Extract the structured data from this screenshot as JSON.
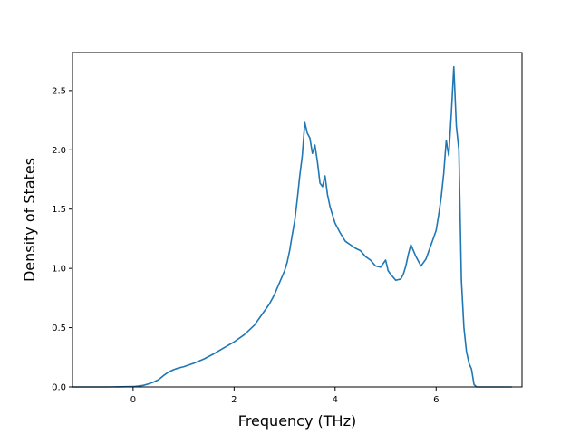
{
  "chart_data": {
    "type": "line",
    "title": "",
    "xlabel": "Frequency (THz)",
    "ylabel": "Density of States",
    "xlim": [
      -1.2,
      7.7
    ],
    "ylim": [
      0.0,
      2.82
    ],
    "xticks": [
      0,
      2,
      4,
      6
    ],
    "xtick_labels": [
      "0",
      "2",
      "4",
      "6"
    ],
    "yticks": [
      0.0,
      0.5,
      1.0,
      1.5,
      2.0,
      2.5
    ],
    "ytick_labels": [
      "0.0",
      "0.5",
      "1.0",
      "1.5",
      "2.0",
      "2.5"
    ],
    "grid": false,
    "colors": {
      "line": "#1f77b4",
      "axes": "#000000",
      "background": "#ffffff"
    },
    "series": [
      {
        "x": [
          -1.2,
          -1.0,
          -0.5,
          0.0,
          0.1,
          0.2,
          0.3,
          0.4,
          0.5,
          0.6,
          0.7,
          0.8,
          0.9,
          1.0,
          1.2,
          1.4,
          1.6,
          1.8,
          2.0,
          2.2,
          2.4,
          2.5,
          2.6,
          2.7,
          2.8,
          2.9,
          3.0,
          3.05,
          3.1,
          3.15,
          3.2,
          3.25,
          3.3,
          3.35,
          3.4,
          3.45,
          3.5,
          3.55,
          3.6,
          3.65,
          3.7,
          3.75,
          3.8,
          3.85,
          3.9,
          4.0,
          4.1,
          4.2,
          4.3,
          4.4,
          4.5,
          4.6,
          4.7,
          4.8,
          4.9,
          5.0,
          5.05,
          5.1,
          5.2,
          5.3,
          5.35,
          5.4,
          5.45,
          5.5,
          5.55,
          5.6,
          5.7,
          5.8,
          5.9,
          6.0,
          6.05,
          6.1,
          6.15,
          6.2,
          6.25,
          6.3,
          6.35,
          6.4,
          6.45,
          6.5,
          6.55,
          6.6,
          6.65,
          6.7,
          6.75,
          6.8,
          6.9,
          7.0,
          7.5
        ],
        "y": [
          0.0,
          0.0,
          0.0,
          0.003,
          0.007,
          0.013,
          0.025,
          0.04,
          0.06,
          0.095,
          0.125,
          0.145,
          0.16,
          0.17,
          0.2,
          0.235,
          0.28,
          0.33,
          0.38,
          0.44,
          0.52,
          0.58,
          0.64,
          0.7,
          0.78,
          0.88,
          0.98,
          1.05,
          1.15,
          1.28,
          1.4,
          1.58,
          1.78,
          1.95,
          2.23,
          2.14,
          2.1,
          1.97,
          2.04,
          1.9,
          1.72,
          1.69,
          1.78,
          1.62,
          1.52,
          1.38,
          1.3,
          1.23,
          1.2,
          1.17,
          1.15,
          1.1,
          1.07,
          1.02,
          1.01,
          1.07,
          0.98,
          0.95,
          0.9,
          0.91,
          0.95,
          1.02,
          1.12,
          1.2,
          1.15,
          1.1,
          1.02,
          1.08,
          1.2,
          1.32,
          1.45,
          1.6,
          1.8,
          2.08,
          1.95,
          2.3,
          2.7,
          2.2,
          2.0,
          0.9,
          0.5,
          0.3,
          0.2,
          0.15,
          0.02,
          0.0,
          0.0,
          0.0,
          0.0
        ]
      }
    ]
  }
}
